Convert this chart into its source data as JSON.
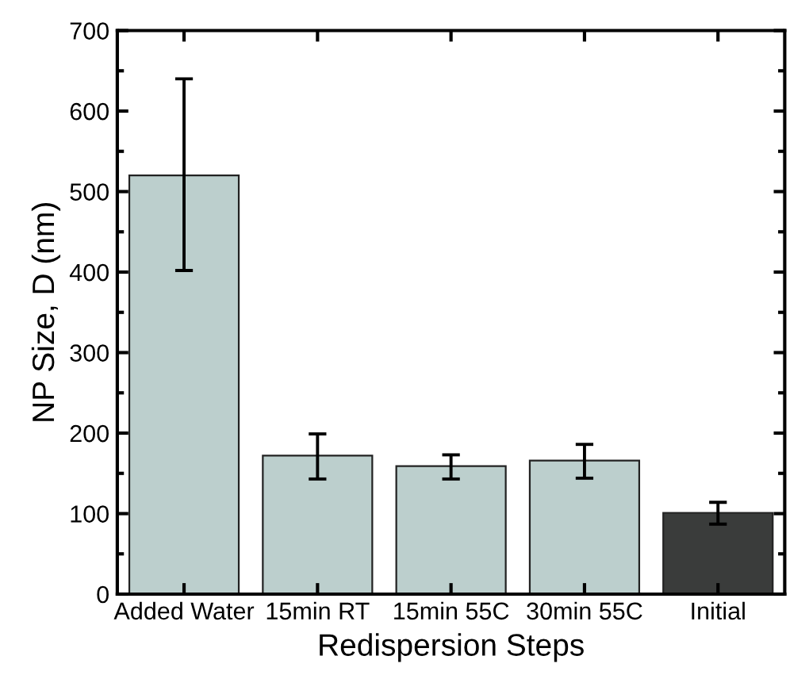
{
  "chart_data": {
    "type": "bar",
    "xlabel": "Redispersion Steps",
    "ylabel": "NP Size, D (nm)",
    "categories": [
      "Added Water",
      "15min RT",
      "15min 55C",
      "30min 55C",
      "Initial"
    ],
    "values": [
      520,
      172,
      159,
      166,
      101
    ],
    "colors": [
      "#bccfcd",
      "#bccfcd",
      "#bccfcd",
      "#bccfcd",
      "#3a3c3b"
    ],
    "errors": [
      [
        402,
        640
      ],
      [
        143,
        199
      ],
      [
        143,
        173
      ],
      [
        144,
        186
      ],
      [
        87,
        114
      ]
    ],
    "ylim": [
      0,
      700
    ],
    "yticks": [
      0,
      100,
      200,
      300,
      400,
      500,
      600,
      700
    ],
    "grid": false,
    "legend": false
  }
}
